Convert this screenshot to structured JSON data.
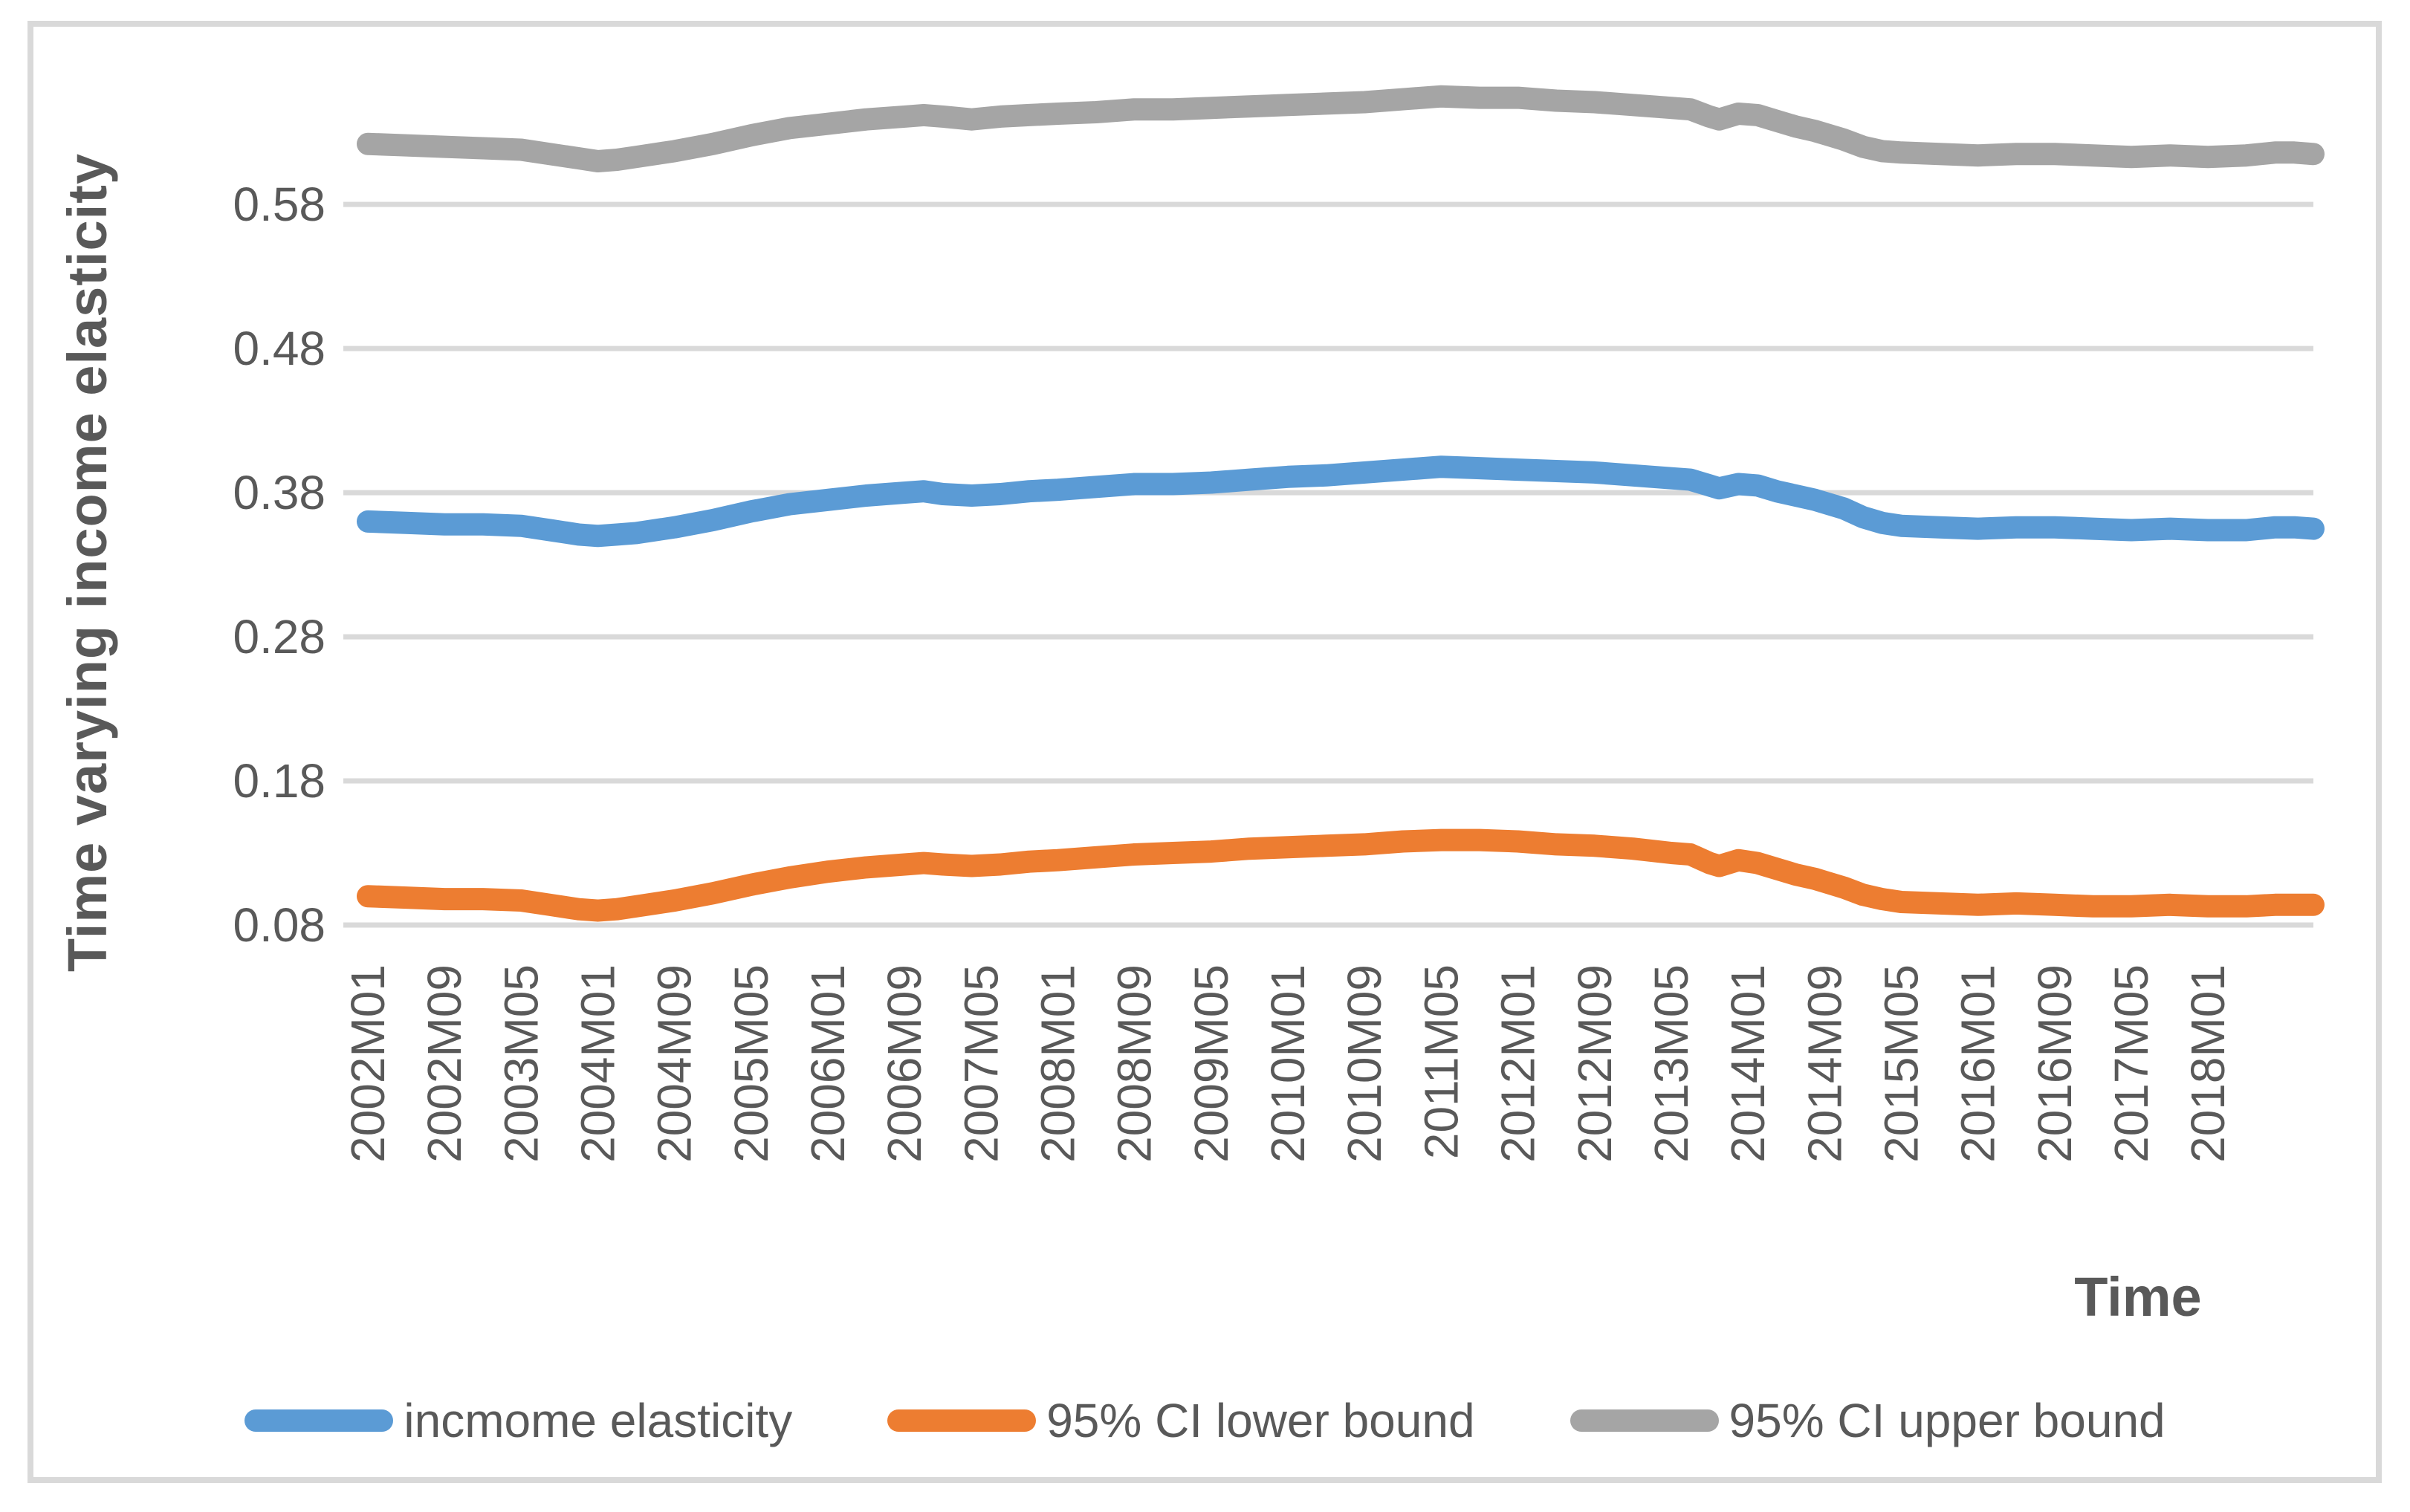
{
  "chart_data": {
    "type": "line",
    "title": "",
    "xlabel": "Time",
    "ylabel": "Time varying income elasticity",
    "x_tick_labels": [
      "2002M01",
      "2002M09",
      "2003M05",
      "2004M01",
      "2004M09",
      "2005M05",
      "2006M01",
      "2006M09",
      "2007M05",
      "2008M01",
      "2008M09",
      "2009M05",
      "2010M01",
      "2010M09",
      "2011M05",
      "2012M01",
      "2012M09",
      "2013M05",
      "2014M01",
      "2014M09",
      "2015M05",
      "2016M01",
      "2016M09",
      "2017M05",
      "2018M01"
    ],
    "x_label_interval_months": 8,
    "x_total_months": 204,
    "x_range": "monthly observations from 2002M01 to 2018M12",
    "y_tick_labels": [
      "0.08",
      "0.18",
      "0.28",
      "0.38",
      "0.48",
      "0.58"
    ],
    "ylim": [
      0.08,
      0.66
    ],
    "grid": "horizontal",
    "legend_position": "bottom",
    "colors": {
      "grid": "#D9D9D9",
      "text": "#595959",
      "frame": "#D9D9D9",
      "background": "#FFFFFF"
    },
    "series": [
      {
        "name": "incmome elasticity",
        "color": "#5B9BD5",
        "points": [
          [
            0,
            0.36
          ],
          [
            4,
            0.359
          ],
          [
            8,
            0.358
          ],
          [
            12,
            0.358
          ],
          [
            16,
            0.357
          ],
          [
            19,
            0.354
          ],
          [
            22,
            0.351
          ],
          [
            24,
            0.35
          ],
          [
            26,
            0.351
          ],
          [
            28,
            0.352
          ],
          [
            32,
            0.356
          ],
          [
            36,
            0.361
          ],
          [
            40,
            0.367
          ],
          [
            44,
            0.372
          ],
          [
            48,
            0.375
          ],
          [
            52,
            0.378
          ],
          [
            56,
            0.38
          ],
          [
            58,
            0.381
          ],
          [
            60,
            0.379
          ],
          [
            63,
            0.378
          ],
          [
            66,
            0.379
          ],
          [
            69,
            0.381
          ],
          [
            72,
            0.382
          ],
          [
            76,
            0.384
          ],
          [
            80,
            0.386
          ],
          [
            84,
            0.386
          ],
          [
            88,
            0.387
          ],
          [
            92,
            0.389
          ],
          [
            96,
            0.391
          ],
          [
            100,
            0.392
          ],
          [
            104,
            0.394
          ],
          [
            108,
            0.396
          ],
          [
            112,
            0.398
          ],
          [
            116,
            0.397
          ],
          [
            120,
            0.396
          ],
          [
            124,
            0.395
          ],
          [
            128,
            0.394
          ],
          [
            132,
            0.392
          ],
          [
            136,
            0.39
          ],
          [
            138,
            0.389
          ],
          [
            140,
            0.385
          ],
          [
            141,
            0.383
          ],
          [
            143,
            0.386
          ],
          [
            145,
            0.385
          ],
          [
            147,
            0.381
          ],
          [
            149,
            0.378
          ],
          [
            151,
            0.375
          ],
          [
            152,
            0.373
          ],
          [
            154,
            0.369
          ],
          [
            156,
            0.363
          ],
          [
            158,
            0.359
          ],
          [
            160,
            0.357
          ],
          [
            164,
            0.356
          ],
          [
            168,
            0.355
          ],
          [
            172,
            0.356
          ],
          [
            176,
            0.356
          ],
          [
            180,
            0.355
          ],
          [
            184,
            0.354
          ],
          [
            188,
            0.355
          ],
          [
            192,
            0.354
          ],
          [
            196,
            0.354
          ],
          [
            199,
            0.356
          ],
          [
            201,
            0.356
          ],
          [
            203,
            0.355
          ]
        ]
      },
      {
        "name": "95% CI lower bound",
        "color": "#ED7D31",
        "points": [
          [
            0,
            0.1
          ],
          [
            4,
            0.099
          ],
          [
            8,
            0.098
          ],
          [
            12,
            0.098
          ],
          [
            16,
            0.097
          ],
          [
            19,
            0.094
          ],
          [
            22,
            0.091
          ],
          [
            24,
            0.09
          ],
          [
            26,
            0.091
          ],
          [
            28,
            0.093
          ],
          [
            32,
            0.097
          ],
          [
            36,
            0.102
          ],
          [
            40,
            0.108
          ],
          [
            44,
            0.113
          ],
          [
            48,
            0.117
          ],
          [
            52,
            0.12
          ],
          [
            56,
            0.122
          ],
          [
            58,
            0.123
          ],
          [
            60,
            0.122
          ],
          [
            63,
            0.121
          ],
          [
            66,
            0.122
          ],
          [
            69,
            0.124
          ],
          [
            72,
            0.125
          ],
          [
            76,
            0.127
          ],
          [
            80,
            0.129
          ],
          [
            84,
            0.13
          ],
          [
            88,
            0.131
          ],
          [
            92,
            0.133
          ],
          [
            96,
            0.134
          ],
          [
            100,
            0.135
          ],
          [
            104,
            0.136
          ],
          [
            108,
            0.138
          ],
          [
            112,
            0.139
          ],
          [
            116,
            0.139
          ],
          [
            120,
            0.138
          ],
          [
            124,
            0.136
          ],
          [
            128,
            0.135
          ],
          [
            132,
            0.133
          ],
          [
            136,
            0.13
          ],
          [
            138,
            0.129
          ],
          [
            140,
            0.123
          ],
          [
            141,
            0.121
          ],
          [
            143,
            0.125
          ],
          [
            145,
            0.123
          ],
          [
            147,
            0.119
          ],
          [
            149,
            0.115
          ],
          [
            151,
            0.112
          ],
          [
            152,
            0.11
          ],
          [
            154,
            0.106
          ],
          [
            156,
            0.101
          ],
          [
            158,
            0.098
          ],
          [
            160,
            0.096
          ],
          [
            164,
            0.095
          ],
          [
            168,
            0.094
          ],
          [
            172,
            0.095
          ],
          [
            176,
            0.094
          ],
          [
            180,
            0.093
          ],
          [
            184,
            0.093
          ],
          [
            188,
            0.094
          ],
          [
            192,
            0.093
          ],
          [
            196,
            0.093
          ],
          [
            199,
            0.094
          ],
          [
            201,
            0.094
          ],
          [
            203,
            0.094
          ]
        ]
      },
      {
        "name": "95% CI upper bound",
        "color": "#A5A5A5",
        "points": [
          [
            0,
            0.622
          ],
          [
            4,
            0.621
          ],
          [
            8,
            0.62
          ],
          [
            12,
            0.619
          ],
          [
            16,
            0.618
          ],
          [
            19,
            0.615
          ],
          [
            22,
            0.612
          ],
          [
            24,
            0.61
          ],
          [
            26,
            0.611
          ],
          [
            28,
            0.613
          ],
          [
            32,
            0.617
          ],
          [
            36,
            0.622
          ],
          [
            40,
            0.628
          ],
          [
            44,
            0.633
          ],
          [
            48,
            0.636
          ],
          [
            52,
            0.639
          ],
          [
            56,
            0.641
          ],
          [
            58,
            0.642
          ],
          [
            60,
            0.641
          ],
          [
            63,
            0.639
          ],
          [
            66,
            0.641
          ],
          [
            69,
            0.642
          ],
          [
            72,
            0.643
          ],
          [
            76,
            0.644
          ],
          [
            80,
            0.646
          ],
          [
            84,
            0.646
          ],
          [
            88,
            0.647
          ],
          [
            92,
            0.648
          ],
          [
            96,
            0.649
          ],
          [
            100,
            0.65
          ],
          [
            104,
            0.651
          ],
          [
            108,
            0.653
          ],
          [
            112,
            0.655
          ],
          [
            116,
            0.654
          ],
          [
            120,
            0.654
          ],
          [
            124,
            0.652
          ],
          [
            128,
            0.651
          ],
          [
            132,
            0.649
          ],
          [
            136,
            0.647
          ],
          [
            138,
            0.646
          ],
          [
            140,
            0.641
          ],
          [
            141,
            0.639
          ],
          [
            143,
            0.643
          ],
          [
            145,
            0.642
          ],
          [
            147,
            0.638
          ],
          [
            149,
            0.634
          ],
          [
            151,
            0.631
          ],
          [
            152,
            0.629
          ],
          [
            154,
            0.625
          ],
          [
            156,
            0.62
          ],
          [
            158,
            0.617
          ],
          [
            160,
            0.616
          ],
          [
            164,
            0.615
          ],
          [
            168,
            0.614
          ],
          [
            172,
            0.615
          ],
          [
            176,
            0.615
          ],
          [
            180,
            0.614
          ],
          [
            184,
            0.613
          ],
          [
            188,
            0.614
          ],
          [
            192,
            0.613
          ],
          [
            196,
            0.614
          ],
          [
            199,
            0.616
          ],
          [
            201,
            0.616
          ],
          [
            203,
            0.615
          ]
        ]
      }
    ]
  }
}
